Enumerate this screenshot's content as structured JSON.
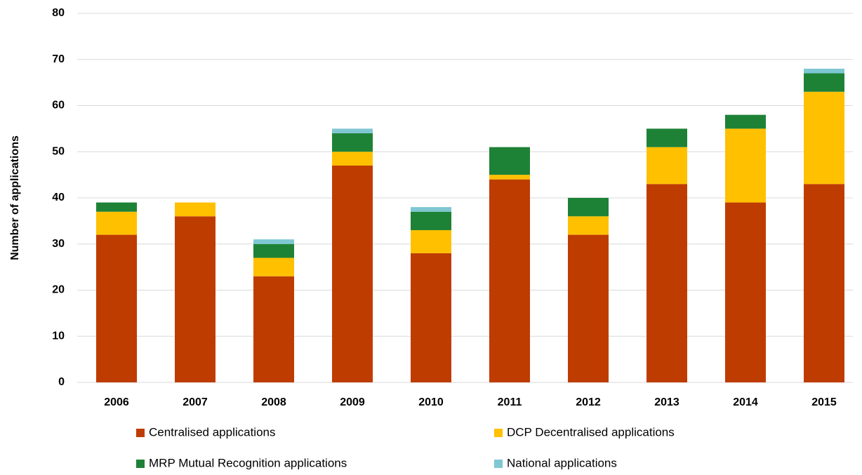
{
  "chart_data": {
    "type": "stacked_bar",
    "y_label": "Number of applications",
    "categories": [
      "2006",
      "2007",
      "2008",
      "2009",
      "2010",
      "2011",
      "2012",
      "2013",
      "2014",
      "2015"
    ],
    "series": [
      {
        "name": "Centralised applications",
        "color": "#bf3c00",
        "values": [
          32,
          36,
          23,
          47,
          28,
          44,
          32,
          43,
          39,
          43
        ]
      },
      {
        "name": "DCP Decentralised applications",
        "color": "#ffc000",
        "values": [
          5,
          3,
          4,
          3,
          5,
          1,
          4,
          8,
          16,
          20
        ]
      },
      {
        "name": "MRP Mutual Recognition applications",
        "color": "#1e8236",
        "values": [
          2,
          0,
          3,
          4,
          4,
          6,
          4,
          4,
          3,
          4
        ]
      },
      {
        "name": "National applications",
        "color": "#7fc7d3",
        "values": [
          0,
          0,
          1,
          1,
          1,
          0,
          0,
          0,
          0,
          1
        ]
      }
    ],
    "ylim": [
      0,
      80
    ],
    "yticks": [
      0,
      10,
      20,
      30,
      40,
      50,
      60,
      70,
      80
    ],
    "grid": true
  }
}
